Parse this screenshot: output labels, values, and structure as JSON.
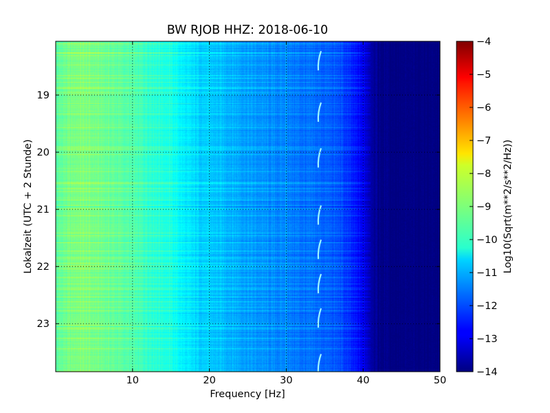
{
  "chart_data": {
    "type": "heatmap",
    "title": "BW RJOB HHZ: 2018-06-10",
    "xlabel": "Frequency [Hz]",
    "ylabel": "Lokalzeit (UTC + 2 Stunde)",
    "xlim": [
      0,
      50
    ],
    "ylim": [
      18.06,
      23.84
    ],
    "y_inverted": true,
    "x_ticks": [
      10,
      20,
      30,
      40,
      50
    ],
    "y_ticks": [
      19,
      20,
      21,
      22,
      23
    ],
    "grid": true,
    "grid_style": "dotted",
    "colormap": "jet",
    "colorbar": {
      "label": "Log10(Sqrt(m**2/s**2/Hz))",
      "range": [
        -14,
        -4
      ],
      "ticks": [
        -4,
        -5,
        -6,
        -7,
        -8,
        -9,
        -10,
        -11,
        -12,
        -13,
        -14
      ],
      "tick_labels": [
        "−4",
        "−5",
        "−6",
        "−7",
        "−8",
        "−9",
        "−10",
        "−11",
        "−12",
        "−13",
        "−14"
      ]
    },
    "spectral_profile": {
      "frequency_hz": [
        0,
        1,
        3,
        5,
        8,
        10,
        12,
        15,
        17,
        20,
        23,
        25,
        28,
        30,
        33,
        35,
        37,
        38,
        40,
        41,
        42,
        45,
        50
      ],
      "level_log10": [
        -9.4,
        -9.2,
        -9.0,
        -9.1,
        -9.3,
        -9.5,
        -9.7,
        -10.0,
        -10.5,
        -10.8,
        -11.0,
        -11.2,
        -11.4,
        -11.5,
        -11.7,
        -11.8,
        -12.0,
        -12.3,
        -12.9,
        -13.5,
        -13.9,
        -14.0,
        -14.0
      ]
    },
    "features": {
      "tonal_line_hz": 34.3,
      "tonal_line_times": [
        18.4,
        19.3,
        20.1,
        21.1,
        21.7,
        22.3,
        22.9,
        23.7
      ],
      "spectral_line_hz": 30
    }
  },
  "colors": {
    "background": "#ffffff",
    "axis": "#000000"
  }
}
